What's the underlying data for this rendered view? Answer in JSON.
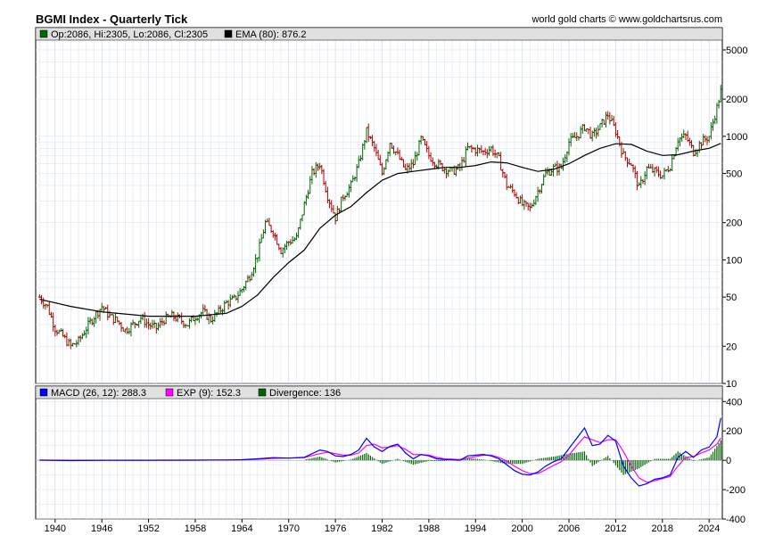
{
  "header": {
    "title": "BGMI Index - Quarterly Tick",
    "credit": "world gold charts © www.goldchartsrus.com"
  },
  "legend_top": {
    "ohlc": "Op:2086, Hi:2305, Lo:2086, Cl:2305",
    "ema": "EMA (80): 876.2"
  },
  "legend_bottom": {
    "macd": "MACD (26, 12): 288.3",
    "exp": "EXP (9): 152.3",
    "divergence": "Divergence: 136"
  },
  "colors": {
    "up": "#006400",
    "down": "#b00000",
    "ema": "#000000",
    "macd": "#0000ff",
    "exp": "#ff00ff",
    "divergence": "#006400",
    "grid": "#dce6ef",
    "legend_bg": "#e0e0e0",
    "frame": "#000000"
  },
  "chart_data": [
    {
      "type": "ohlc",
      "title": "BGMI Index - Quarterly Tick",
      "scale": "log",
      "ylim": [
        10,
        6000
      ],
      "y_ticks": [
        10,
        20,
        50,
        100,
        200,
        500,
        1000,
        2000,
        5000
      ],
      "x_range": [
        1937.5,
        2025.7
      ],
      "x_ticks": [
        1940,
        1946,
        1952,
        1958,
        1964,
        1970,
        1976,
        1982,
        1988,
        1994,
        2000,
        2006,
        2012,
        2018,
        2024
      ],
      "grid": true,
      "price_series": [
        [
          1938.0,
          50
        ],
        [
          1939.0,
          42
        ],
        [
          1940.0,
          28
        ],
        [
          1941.0,
          24
        ],
        [
          1942.0,
          20
        ],
        [
          1943.0,
          22
        ],
        [
          1944.0,
          28
        ],
        [
          1945.0,
          35
        ],
        [
          1946.0,
          42
        ],
        [
          1947.0,
          35
        ],
        [
          1948.0,
          32
        ],
        [
          1949.0,
          27
        ],
        [
          1950.0,
          30
        ],
        [
          1951.0,
          34
        ],
        [
          1952.0,
          30
        ],
        [
          1953.0,
          28
        ],
        [
          1954.0,
          33
        ],
        [
          1955.0,
          35
        ],
        [
          1956.0,
          33
        ],
        [
          1957.0,
          30
        ],
        [
          1958.0,
          35
        ],
        [
          1959.0,
          38
        ],
        [
          1960.0,
          33
        ],
        [
          1961.0,
          38
        ],
        [
          1962.0,
          45
        ],
        [
          1963.0,
          48
        ],
        [
          1964.0,
          58
        ],
        [
          1965.0,
          75
        ],
        [
          1966.0,
          110
        ],
        [
          1967.0,
          200
        ],
        [
          1968.0,
          170
        ],
        [
          1969.0,
          120
        ],
        [
          1970.0,
          140
        ],
        [
          1971.0,
          150
        ],
        [
          1972.0,
          280
        ],
        [
          1973.0,
          500
        ],
        [
          1974.0,
          600
        ],
        [
          1975.0,
          330
        ],
        [
          1976.0,
          220
        ],
        [
          1977.0,
          330
        ],
        [
          1978.0,
          400
        ],
        [
          1979.0,
          600
        ],
        [
          1980.0,
          1100
        ],
        [
          1981.0,
          800
        ],
        [
          1982.0,
          500
        ],
        [
          1983.0,
          900
        ],
        [
          1984.0,
          700
        ],
        [
          1985.0,
          530
        ],
        [
          1986.0,
          600
        ],
        [
          1987.0,
          950
        ],
        [
          1988.0,
          700
        ],
        [
          1989.0,
          600
        ],
        [
          1990.0,
          550
        ],
        [
          1991.0,
          520
        ],
        [
          1992.0,
          560
        ],
        [
          1993.0,
          800
        ],
        [
          1994.0,
          780
        ],
        [
          1995.0,
          750
        ],
        [
          1996.0,
          800
        ],
        [
          1997.0,
          650
        ],
        [
          1998.0,
          400
        ],
        [
          1999.0,
          350
        ],
        [
          2000.0,
          280
        ],
        [
          2001.0,
          260
        ],
        [
          2002.0,
          360
        ],
        [
          2003.0,
          500
        ],
        [
          2004.0,
          550
        ],
        [
          2005.0,
          560
        ],
        [
          2006.0,
          900
        ],
        [
          2007.0,
          1000
        ],
        [
          2008.0,
          1200
        ],
        [
          2009.0,
          1000
        ],
        [
          2010.0,
          1200
        ],
        [
          2011.0,
          1500
        ],
        [
          2012.0,
          1100
        ],
        [
          2013.0,
          700
        ],
        [
          2014.0,
          600
        ],
        [
          2015.0,
          380
        ],
        [
          2016.0,
          550
        ],
        [
          2017.0,
          520
        ],
        [
          2018.0,
          480
        ],
        [
          2019.0,
          580
        ],
        [
          2020.0,
          950
        ],
        [
          2021.0,
          1000
        ],
        [
          2022.0,
          750
        ],
        [
          2023.0,
          900
        ],
        [
          2024.0,
          1000
        ],
        [
          2025.0,
          1700
        ],
        [
          2025.5,
          2305
        ]
      ],
      "ema_series": [
        [
          1938.0,
          48
        ],
        [
          1942.0,
          42
        ],
        [
          1946.0,
          38
        ],
        [
          1952.0,
          35
        ],
        [
          1958.0,
          35
        ],
        [
          1962.0,
          37
        ],
        [
          1964.0,
          42
        ],
        [
          1966.0,
          52
        ],
        [
          1968.0,
          72
        ],
        [
          1970.0,
          95
        ],
        [
          1972.0,
          120
        ],
        [
          1974.0,
          180
        ],
        [
          1976.0,
          230
        ],
        [
          1978.0,
          270
        ],
        [
          1980.0,
          350
        ],
        [
          1982.0,
          440
        ],
        [
          1984.0,
          500
        ],
        [
          1986.0,
          520
        ],
        [
          1988.0,
          540
        ],
        [
          1990.0,
          560
        ],
        [
          1992.0,
          560
        ],
        [
          1994.0,
          580
        ],
        [
          1996.0,
          620
        ],
        [
          1998.0,
          610
        ],
        [
          2000.0,
          560
        ],
        [
          2002.0,
          520
        ],
        [
          2004.0,
          540
        ],
        [
          2006.0,
          600
        ],
        [
          2008.0,
          700
        ],
        [
          2010.0,
          800
        ],
        [
          2012.0,
          870
        ],
        [
          2014.0,
          860
        ],
        [
          2016.0,
          760
        ],
        [
          2018.0,
          700
        ],
        [
          2020.0,
          710
        ],
        [
          2022.0,
          760
        ],
        [
          2024.0,
          800
        ],
        [
          2025.5,
          876
        ]
      ]
    },
    {
      "type": "line",
      "ylim": [
        -400,
        420
      ],
      "y_ticks": [
        -400,
        -200,
        0,
        200,
        400
      ],
      "x_range": [
        1937.5,
        2025.7
      ],
      "grid": true,
      "series": [
        {
          "name": "MACD (26, 12): 288.3",
          "values": [
            [
              1938,
              1
            ],
            [
              1942,
              -2
            ],
            [
              1946,
              0
            ],
            [
              1952,
              0
            ],
            [
              1958,
              1
            ],
            [
              1962,
              2
            ],
            [
              1964,
              4
            ],
            [
              1966,
              10
            ],
            [
              1968,
              18
            ],
            [
              1970,
              15
            ],
            [
              1972,
              20
            ],
            [
              1974,
              70
            ],
            [
              1975,
              60
            ],
            [
              1976,
              30
            ],
            [
              1977,
              25
            ],
            [
              1978,
              40
            ],
            [
              1979,
              70
            ],
            [
              1980,
              150
            ],
            [
              1981,
              90
            ],
            [
              1982,
              60
            ],
            [
              1983,
              95
            ],
            [
              1984,
              110
            ],
            [
              1985,
              50
            ],
            [
              1986,
              10
            ],
            [
              1987,
              40
            ],
            [
              1988,
              30
            ],
            [
              1989,
              10
            ],
            [
              1990,
              5
            ],
            [
              1992,
              0
            ],
            [
              1993,
              30
            ],
            [
              1995,
              40
            ],
            [
              1996,
              30
            ],
            [
              1997,
              10
            ],
            [
              1998,
              -30
            ],
            [
              1999,
              -70
            ],
            [
              2000,
              -95
            ],
            [
              2001,
              -100
            ],
            [
              2002,
              -80
            ],
            [
              2003,
              -40
            ],
            [
              2004,
              -10
            ],
            [
              2005,
              10
            ],
            [
              2006,
              80
            ],
            [
              2007,
              150
            ],
            [
              2008,
              220
            ],
            [
              2009,
              100
            ],
            [
              2010,
              110
            ],
            [
              2011,
              170
            ],
            [
              2012,
              130
            ],
            [
              2013,
              -40
            ],
            [
              2014,
              -120
            ],
            [
              2015,
              -175
            ],
            [
              2016,
              -160
            ],
            [
              2017,
              -130
            ],
            [
              2018,
              -120
            ],
            [
              2019,
              -100
            ],
            [
              2020,
              20
            ],
            [
              2021,
              60
            ],
            [
              2022,
              20
            ],
            [
              2023,
              70
            ],
            [
              2024,
              90
            ],
            [
              2025,
              160
            ],
            [
              2025.5,
              288
            ]
          ]
        },
        {
          "name": "EXP (9): 152.3",
          "values": [
            [
              1938,
              1
            ],
            [
              1946,
              0
            ],
            [
              1958,
              1
            ],
            [
              1964,
              3
            ],
            [
              1966,
              7
            ],
            [
              1968,
              13
            ],
            [
              1970,
              15
            ],
            [
              1972,
              18
            ],
            [
              1974,
              45
            ],
            [
              1975,
              55
            ],
            [
              1976,
              45
            ],
            [
              1977,
              35
            ],
            [
              1978,
              35
            ],
            [
              1979,
              50
            ],
            [
              1980,
              100
            ],
            [
              1981,
              110
            ],
            [
              1982,
              85
            ],
            [
              1983,
              90
            ],
            [
              1984,
              100
            ],
            [
              1985,
              75
            ],
            [
              1986,
              40
            ],
            [
              1987,
              38
            ],
            [
              1988,
              35
            ],
            [
              1989,
              20
            ],
            [
              1990,
              10
            ],
            [
              1992,
              5
            ],
            [
              1993,
              15
            ],
            [
              1995,
              35
            ],
            [
              1996,
              35
            ],
            [
              1997,
              20
            ],
            [
              1998,
              -5
            ],
            [
              1999,
              -40
            ],
            [
              2000,
              -70
            ],
            [
              2001,
              -90
            ],
            [
              2002,
              -90
            ],
            [
              2003,
              -65
            ],
            [
              2004,
              -35
            ],
            [
              2005,
              -10
            ],
            [
              2006,
              35
            ],
            [
              2007,
              100
            ],
            [
              2008,
              160
            ],
            [
              2009,
              140
            ],
            [
              2010,
              120
            ],
            [
              2011,
              140
            ],
            [
              2012,
              140
            ],
            [
              2013,
              60
            ],
            [
              2014,
              -40
            ],
            [
              2015,
              -120
            ],
            [
              2016,
              -150
            ],
            [
              2017,
              -140
            ],
            [
              2018,
              -125
            ],
            [
              2019,
              -110
            ],
            [
              2020,
              -40
            ],
            [
              2021,
              20
            ],
            [
              2022,
              25
            ],
            [
              2023,
              50
            ],
            [
              2024,
              70
            ],
            [
              2025,
              110
            ],
            [
              2025.5,
              152
            ]
          ]
        }
      ],
      "divergence": [
        [
          1972,
          4
        ],
        [
          1974,
          25
        ],
        [
          1976,
          -15
        ],
        [
          1978,
          5
        ],
        [
          1980,
          50
        ],
        [
          1982,
          -25
        ],
        [
          1984,
          10
        ],
        [
          1986,
          -30
        ],
        [
          1988,
          -5
        ],
        [
          1990,
          -5
        ],
        [
          1993,
          15
        ],
        [
          1995,
          5
        ],
        [
          1998,
          -25
        ],
        [
          2000,
          -25
        ],
        [
          2002,
          10
        ],
        [
          2004,
          25
        ],
        [
          2006,
          45
        ],
        [
          2008,
          60
        ],
        [
          2009,
          -40
        ],
        [
          2011,
          30
        ],
        [
          2013,
          -100
        ],
        [
          2015,
          -55
        ],
        [
          2017,
          10
        ],
        [
          2019,
          10
        ],
        [
          2020,
          60
        ],
        [
          2022,
          -5
        ],
        [
          2024,
          20
        ],
        [
          2025.5,
          136
        ]
      ]
    }
  ]
}
